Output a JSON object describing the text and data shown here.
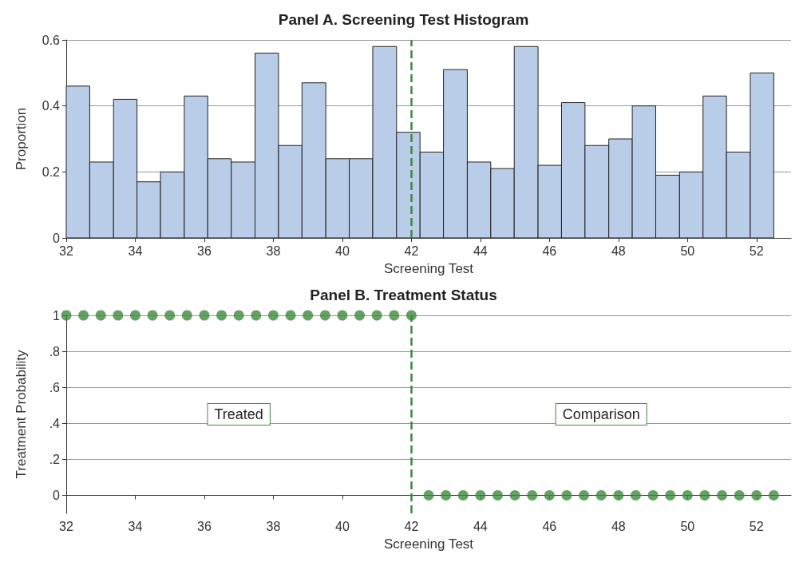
{
  "chart_data": [
    {
      "type": "histogram",
      "title": "Panel A. Screening Test Histogram",
      "xlabel": "Screening Test",
      "ylabel": "Proportion",
      "color": "#b9cde8",
      "bins": [
        32,
        32.68,
        33.37,
        34.05,
        34.73,
        35.42,
        36.1,
        36.78,
        37.47,
        38.15,
        38.83,
        39.52,
        40.2,
        40.88,
        41.57,
        42.25,
        42.93,
        43.62,
        44.3,
        44.98,
        45.67,
        46.35,
        47.03,
        47.72,
        48.4,
        49.08,
        49.77,
        50.45,
        51.13,
        51.82,
        52.5
      ],
      "values": [
        0.46,
        0.23,
        0.42,
        0.17,
        0.2,
        0.43,
        0.24,
        0.23,
        0.56,
        0.28,
        0.47,
        0.24,
        0.24,
        0.58,
        0.32,
        0.26,
        0.51,
        0.23,
        0.21,
        0.58,
        0.22,
        0.41,
        0.28,
        0.3,
        0.4,
        0.19,
        0.2,
        0.43,
        0.26,
        0.5
      ],
      "xlim": [
        32,
        53
      ],
      "xticks": [
        32,
        34,
        36,
        38,
        40,
        42,
        44,
        46,
        48,
        50,
        52
      ],
      "ylim": [
        0,
        0.6
      ],
      "yticks": [
        0,
        0.2,
        0.4,
        0.6
      ],
      "grid": "y",
      "ref_lines": [
        {
          "axis": "x",
          "value": 42,
          "color": "#3d8b3d",
          "line_style": "dashed"
        }
      ]
    },
    {
      "type": "scatter",
      "title": "Panel B. Treatment Status",
      "xlabel": "Screening Test",
      "ylabel": "Treatment Probability",
      "color": "#3d8b3d",
      "marker": "circle",
      "x": [
        32,
        32.5,
        33,
        33.5,
        34,
        34.5,
        35,
        35.5,
        36,
        36.5,
        37,
        37.5,
        38,
        38.5,
        39,
        39.5,
        40,
        40.5,
        41,
        41.5,
        42,
        42.5,
        43,
        43.5,
        44,
        44.5,
        45,
        45.5,
        46,
        46.5,
        47,
        47.5,
        48,
        48.5,
        49,
        49.5,
        50,
        50.5,
        51,
        51.5,
        52,
        52.5
      ],
      "values": [
        1,
        1,
        1,
        1,
        1,
        1,
        1,
        1,
        1,
        1,
        1,
        1,
        1,
        1,
        1,
        1,
        1,
        1,
        1,
        1,
        1,
        0,
        0,
        0,
        0,
        0,
        0,
        0,
        0,
        0,
        0,
        0,
        0,
        0,
        0,
        0,
        0,
        0,
        0,
        0,
        0,
        0
      ],
      "xlim": [
        32,
        53
      ],
      "xticks": [
        32,
        34,
        36,
        38,
        40,
        42,
        44,
        46,
        48,
        50,
        52
      ],
      "ylim": [
        -0.1,
        1
      ],
      "yticks": [
        0,
        {
          "value": 0.2,
          "label": ".2"
        },
        {
          "value": 0.4,
          "label": ".4"
        },
        {
          "value": 0.6,
          "label": ".6"
        },
        {
          "value": 0.8,
          "label": ".8"
        },
        1
      ],
      "grid": "y",
      "ref_lines": [
        {
          "axis": "x",
          "value": 42,
          "color": "#3d8b3d",
          "line_style": "dashed"
        }
      ],
      "annotations": [
        "Treated",
        "Comparison"
      ]
    }
  ]
}
